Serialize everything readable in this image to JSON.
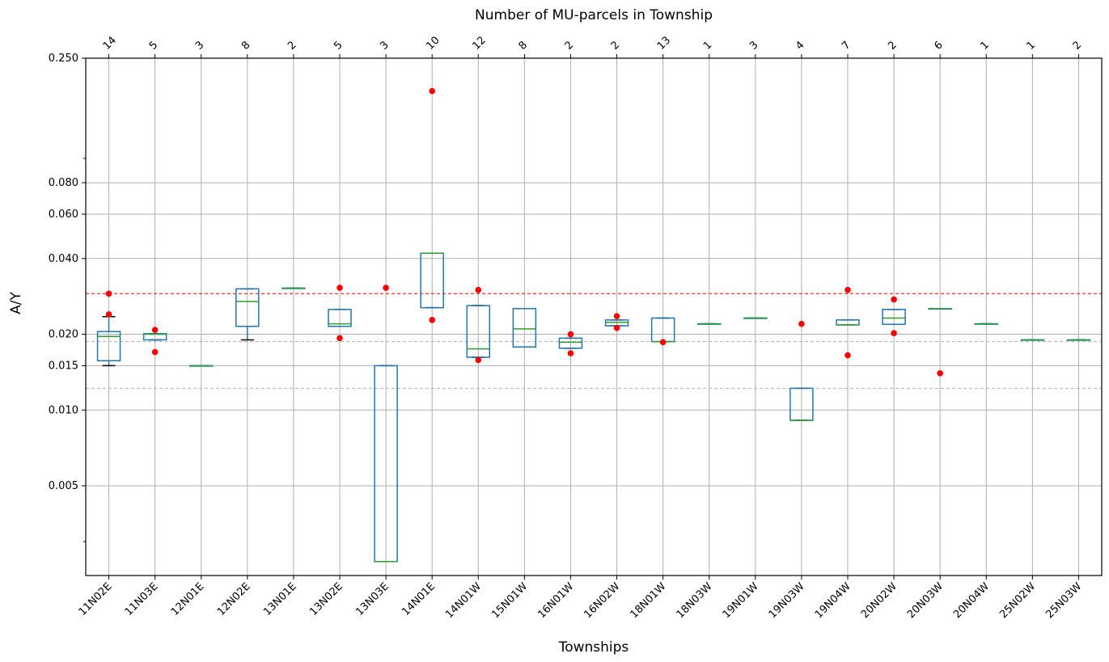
{
  "chart_data": {
    "type": "boxplot",
    "title": "Number of MU-parcels in Township",
    "xlabel": "Townships",
    "ylabel": "A/Y",
    "yscale": "log",
    "ylim": [
      0.0022,
      0.25
    ],
    "yticks": [
      {
        "value": 0.25,
        "label": "0.250"
      },
      {
        "value": 0.08,
        "label": "0.080"
      },
      {
        "value": 0.06,
        "label": "0.060"
      },
      {
        "value": 0.04,
        "label": "0.040"
      },
      {
        "value": 0.02,
        "label": "0.020"
      },
      {
        "value": 0.015,
        "label": "0.015"
      },
      {
        "value": 0.01,
        "label": "0.010"
      },
      {
        "value": 0.005,
        "label": "0.005"
      }
    ],
    "grid": true,
    "reference_lines": [
      {
        "value": 0.029,
        "style": "red-dashed"
      },
      {
        "value": 0.0187,
        "style": "gray-dashed"
      },
      {
        "value": 0.0122,
        "style": "gray-dashed"
      }
    ],
    "categories": [
      "11N02E",
      "11N03E",
      "12N01E",
      "12N02E",
      "13N01E",
      "13N02E",
      "13N03E",
      "14N01E",
      "14N01W",
      "15N01W",
      "16N01W",
      "16N02W",
      "18N01W",
      "18N03W",
      "19N01W",
      "19N03W",
      "19N04W",
      "20N02W",
      "20N03W",
      "20N04W",
      "25N02W",
      "25N03W"
    ],
    "counts": [
      "14",
      "5",
      "3",
      "8",
      "2",
      "5",
      "3",
      "10",
      "12",
      "8",
      "2",
      "2",
      "13",
      "1",
      "3",
      "4",
      "7",
      "2",
      "6",
      "1",
      "1",
      "2"
    ],
    "boxes": [
      {
        "whislo": 0.015,
        "q1": 0.0157,
        "med": 0.0196,
        "q3": 0.0205,
        "whishi": 0.0235,
        "fliers": [
          0.029,
          0.024
        ]
      },
      {
        "whislo": 0.019,
        "q1": 0.019,
        "med": 0.02,
        "q3": 0.0201,
        "whishi": 0.0201,
        "fliers": [
          0.0208,
          0.017
        ]
      },
      {
        "whislo": 0.015,
        "q1": 0.015,
        "med": 0.015,
        "q3": 0.015,
        "whishi": 0.015,
        "fliers": []
      },
      {
        "whislo": 0.019,
        "q1": 0.0215,
        "med": 0.027,
        "q3": 0.0303,
        "whishi": 0.0303,
        "fliers": []
      },
      {
        "whislo": 0.0305,
        "q1": 0.0305,
        "med": 0.0305,
        "q3": 0.0305,
        "whishi": 0.0305,
        "fliers": []
      },
      {
        "whislo": 0.0215,
        "q1": 0.0215,
        "med": 0.022,
        "q3": 0.0251,
        "whishi": 0.0251,
        "fliers": [
          0.0306,
          0.0193
        ]
      },
      {
        "whislo": 0.0025,
        "q1": 0.0025,
        "med": 0.0025,
        "q3": 0.015,
        "whishi": 0.015,
        "fliers": [
          0.0306
        ]
      },
      {
        "whislo": 0.0255,
        "q1": 0.0255,
        "med": 0.042,
        "q3": 0.042,
        "whishi": 0.042,
        "fliers": [
          0.185,
          0.0228
        ]
      },
      {
        "whislo": 0.0162,
        "q1": 0.0162,
        "med": 0.0175,
        "q3": 0.026,
        "whishi": 0.026,
        "fliers": [
          0.03,
          0.0158
        ]
      },
      {
        "whislo": 0.0178,
        "q1": 0.0178,
        "med": 0.021,
        "q3": 0.0253,
        "whishi": 0.0253,
        "fliers": []
      },
      {
        "whislo": 0.0176,
        "q1": 0.0176,
        "med": 0.0186,
        "q3": 0.0193,
        "whishi": 0.0193,
        "fliers": [
          0.02,
          0.0168
        ]
      },
      {
        "whislo": 0.0216,
        "q1": 0.0216,
        "med": 0.0223,
        "q3": 0.0228,
        "whishi": 0.0228,
        "fliers": [
          0.0236,
          0.0212
        ]
      },
      {
        "whislo": 0.0187,
        "q1": 0.0187,
        "med": 0.0187,
        "q3": 0.0232,
        "whishi": 0.0232,
        "fliers": [
          0.0186
        ]
      },
      {
        "whislo": 0.022,
        "q1": 0.022,
        "med": 0.022,
        "q3": 0.022,
        "whishi": 0.022,
        "fliers": []
      },
      {
        "whislo": 0.0232,
        "q1": 0.0232,
        "med": 0.0232,
        "q3": 0.0232,
        "whishi": 0.0232,
        "fliers": []
      },
      {
        "whislo": 0.0091,
        "q1": 0.0091,
        "med": 0.0091,
        "q3": 0.0122,
        "whishi": 0.0122,
        "fliers": [
          0.022
        ]
      },
      {
        "whislo": 0.0218,
        "q1": 0.0218,
        "med": 0.0218,
        "q3": 0.0228,
        "whishi": 0.0228,
        "fliers": [
          0.03,
          0.0165
        ]
      },
      {
        "whislo": 0.0219,
        "q1": 0.0219,
        "med": 0.0232,
        "q3": 0.0251,
        "whishi": 0.0251,
        "fliers": [
          0.0275,
          0.0202
        ]
      },
      {
        "whislo": 0.0253,
        "q1": 0.0253,
        "med": 0.0253,
        "q3": 0.0253,
        "whishi": 0.0253,
        "fliers": [
          0.014
        ]
      },
      {
        "whislo": 0.022,
        "q1": 0.022,
        "med": 0.022,
        "q3": 0.022,
        "whishi": 0.022,
        "fliers": []
      },
      {
        "whislo": 0.019,
        "q1": 0.019,
        "med": 0.019,
        "q3": 0.019,
        "whishi": 0.019,
        "fliers": []
      },
      {
        "whislo": 0.019,
        "q1": 0.019,
        "med": 0.019,
        "q3": 0.019,
        "whishi": 0.019,
        "fliers": []
      }
    ],
    "colors": {
      "box": "#1f77b4",
      "median": "#2ca02c",
      "whisker_cap": "#000000",
      "flier": "#ff0000",
      "ref_red": "#ff0000",
      "ref_gray": "#b0b0b0",
      "grid": "#b0b0b0"
    }
  }
}
